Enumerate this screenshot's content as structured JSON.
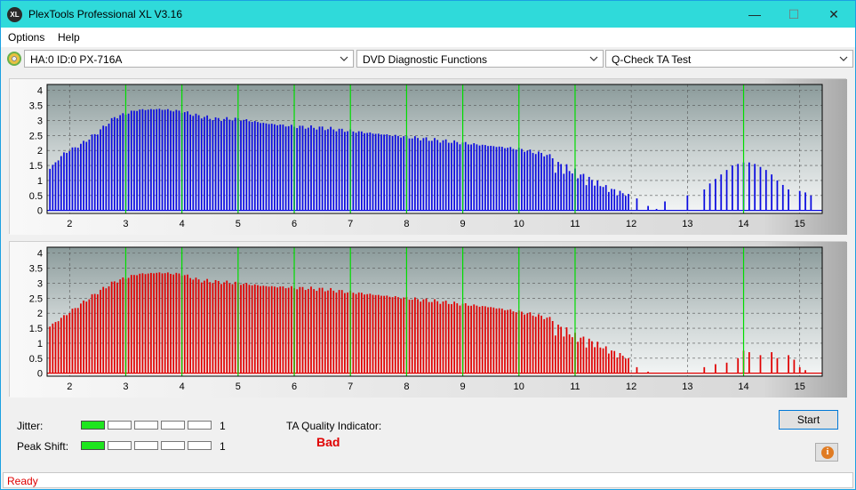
{
  "window": {
    "title": "PlexTools Professional XL V3.16",
    "icon_text": "XL",
    "minimize": "—",
    "maximize": "☐",
    "close": "✕"
  },
  "menu": [
    "Options",
    "Help"
  ],
  "toolbar": {
    "drive": "HA:0 ID:0  PX-716A",
    "function": "DVD Diagnostic Functions",
    "test": "Q-Check TA Test"
  },
  "colors": {
    "top_bars": "#0a0ae0",
    "bottom_bars": "#e00000",
    "marker_lines": "#00dd00",
    "meter_on": "#1ee51e"
  },
  "chart_data": [
    {
      "type": "bar",
      "name": "top",
      "x_ticks": [
        2,
        3,
        4,
        5,
        6,
        7,
        8,
        9,
        10,
        11,
        12,
        13,
        14,
        15
      ],
      "y_ticks": [
        0,
        0.5,
        1,
        1.5,
        2,
        2.5,
        3,
        3.5,
        4
      ],
      "xlim": [
        1.6,
        15.4
      ],
      "ylim": [
        -0.1,
        4.2
      ],
      "green_markers": [
        3,
        4,
        5,
        6,
        7,
        8,
        9,
        10,
        11,
        14
      ],
      "profile": [
        [
          1.6,
          1.3
        ],
        [
          1.9,
          1.9
        ],
        [
          2.2,
          2.2
        ],
        [
          2.5,
          2.6
        ],
        [
          2.8,
          3.1
        ],
        [
          3.2,
          3.35
        ],
        [
          3.6,
          3.38
        ],
        [
          4.0,
          3.3
        ],
        [
          4.3,
          3.15
        ],
        [
          4.6,
          3.05
        ],
        [
          5.0,
          3.05
        ],
        [
          5.5,
          2.9
        ],
        [
          6.0,
          2.8
        ],
        [
          6.5,
          2.75
        ],
        [
          7.0,
          2.65
        ],
        [
          7.5,
          2.55
        ],
        [
          8.0,
          2.45
        ],
        [
          8.5,
          2.35
        ],
        [
          9.0,
          2.25
        ],
        [
          9.5,
          2.15
        ],
        [
          10.0,
          2.05
        ],
        [
          10.5,
          1.85
        ],
        [
          10.8,
          1.6
        ],
        [
          11.0,
          1.4
        ],
        [
          11.3,
          1.1
        ],
        [
          11.6,
          0.8
        ],
        [
          11.9,
          0.6
        ],
        [
          12.0,
          0.5
        ]
      ],
      "tail": [
        [
          12.1,
          0.4
        ],
        [
          12.3,
          0.15
        ],
        [
          12.45,
          0.05
        ],
        [
          12.6,
          0.3
        ],
        [
          13.0,
          0.5
        ],
        [
          13.3,
          0.7
        ],
        [
          13.4,
          0.9
        ],
        [
          13.5,
          1.05
        ],
        [
          13.6,
          1.2
        ],
        [
          13.7,
          1.35
        ],
        [
          13.8,
          1.5
        ],
        [
          13.9,
          1.55
        ],
        [
          14.0,
          1.6
        ],
        [
          14.1,
          1.6
        ],
        [
          14.2,
          1.55
        ],
        [
          14.3,
          1.45
        ],
        [
          14.4,
          1.35
        ],
        [
          14.5,
          1.2
        ],
        [
          14.6,
          1.0
        ],
        [
          14.7,
          0.85
        ],
        [
          14.8,
          0.7
        ],
        [
          15.0,
          0.65
        ],
        [
          15.1,
          0.6
        ],
        [
          15.2,
          0.5
        ]
      ]
    },
    {
      "type": "bar",
      "name": "bottom",
      "x_ticks": [
        2,
        3,
        4,
        5,
        6,
        7,
        8,
        9,
        10,
        11,
        12,
        13,
        14,
        15
      ],
      "y_ticks": [
        0,
        0.5,
        1,
        1.5,
        2,
        2.5,
        3,
        3.5,
        4
      ],
      "xlim": [
        1.6,
        15.4
      ],
      "ylim": [
        -0.1,
        4.2
      ],
      "green_markers": [
        3,
        4,
        5,
        6,
        7,
        8,
        9,
        10,
        11,
        14
      ],
      "profile": [
        [
          1.6,
          1.5
        ],
        [
          1.9,
          1.9
        ],
        [
          2.2,
          2.3
        ],
        [
          2.5,
          2.7
        ],
        [
          2.8,
          3.05
        ],
        [
          3.2,
          3.3
        ],
        [
          3.6,
          3.35
        ],
        [
          4.0,
          3.3
        ],
        [
          4.3,
          3.1
        ],
        [
          4.6,
          3.05
        ],
        [
          5.0,
          3.0
        ],
        [
          5.5,
          2.9
        ],
        [
          6.0,
          2.85
        ],
        [
          6.5,
          2.8
        ],
        [
          7.0,
          2.7
        ],
        [
          7.5,
          2.6
        ],
        [
          8.0,
          2.5
        ],
        [
          8.5,
          2.4
        ],
        [
          9.0,
          2.3
        ],
        [
          9.5,
          2.2
        ],
        [
          10.0,
          2.05
        ],
        [
          10.5,
          1.85
        ],
        [
          10.8,
          1.6
        ],
        [
          11.0,
          1.35
        ],
        [
          11.3,
          1.15
        ],
        [
          11.6,
          0.85
        ],
        [
          11.9,
          0.6
        ],
        [
          12.0,
          0.4
        ]
      ],
      "tail": [
        [
          12.1,
          0.2
        ],
        [
          12.3,
          0.05
        ],
        [
          13.3,
          0.2
        ],
        [
          13.5,
          0.3
        ],
        [
          13.7,
          0.35
        ],
        [
          13.9,
          0.5
        ],
        [
          14.0,
          0.75
        ],
        [
          14.1,
          0.7
        ],
        [
          14.3,
          0.6
        ],
        [
          14.5,
          0.7
        ],
        [
          14.6,
          0.5
        ],
        [
          14.8,
          0.6
        ],
        [
          14.9,
          0.45
        ],
        [
          15.0,
          0.2
        ],
        [
          15.1,
          0.1
        ]
      ]
    }
  ],
  "results": {
    "jitter_label": "Jitter:",
    "jitter_value": "1",
    "jitter_level": 1,
    "peak_label": "Peak Shift:",
    "peak_value": "1",
    "peak_level": 1,
    "meter_segments": 5,
    "ta_label": "TA Quality Indicator:",
    "ta_result": "Bad",
    "ta_result_color": "#e00000"
  },
  "buttons": {
    "start": "Start",
    "info_icon": "info-icon"
  },
  "status": "Ready"
}
